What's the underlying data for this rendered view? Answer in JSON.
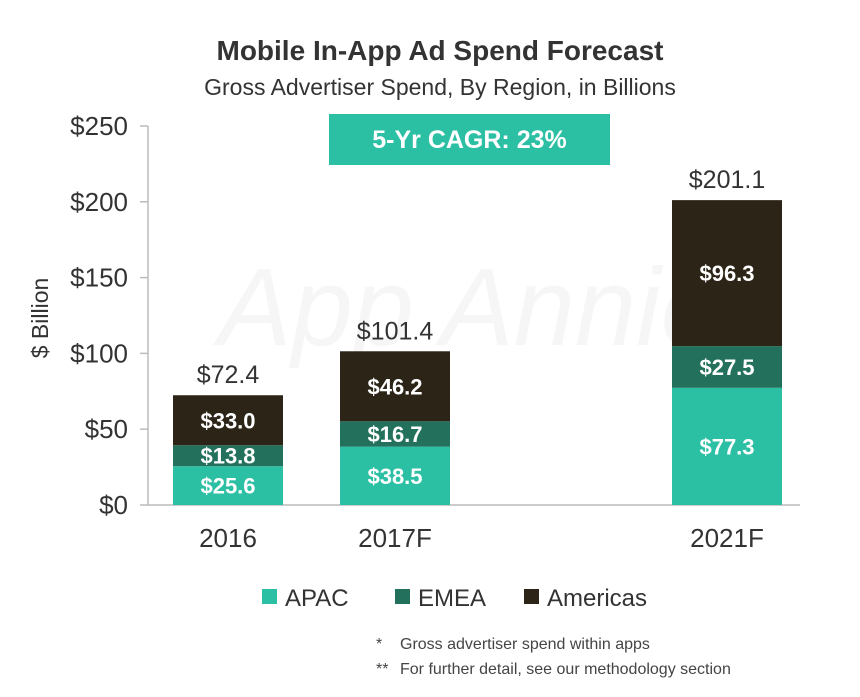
{
  "chart_data": {
    "type": "bar",
    "stacked": true,
    "title": "Mobile In-App Ad Spend Forecast",
    "subtitle": "Gross Advertiser Spend, By Region, in Billions",
    "ylabel": "$ Billion",
    "ylim": [
      0,
      250
    ],
    "y_ticks": [
      0,
      50,
      100,
      150,
      200,
      250
    ],
    "y_tick_labels": [
      "$0",
      "$50",
      "$100",
      "$150",
      "$200",
      "$250"
    ],
    "categories": [
      "2016",
      "2017F",
      "2021F"
    ],
    "series": [
      {
        "name": "APAC",
        "color": "#2bbfa4",
        "values": [
          25.6,
          38.5,
          77.3
        ],
        "labels": [
          "$25.6",
          "$38.5",
          "$77.3"
        ]
      },
      {
        "name": "EMEA",
        "color": "#23705c",
        "values": [
          13.8,
          16.7,
          27.5
        ],
        "labels": [
          "$13.8",
          "$16.7",
          "$27.5"
        ]
      },
      {
        "name": "Americas",
        "color": "#2d2418",
        "values": [
          33.0,
          46.2,
          96.3
        ],
        "labels": [
          "$33.0",
          "$46.2",
          "$96.3"
        ]
      }
    ],
    "totals": [
      72.4,
      101.4,
      201.1
    ],
    "total_labels": [
      "$72.4",
      "$101.4",
      "$201.1"
    ],
    "callout": "5-Yr CAGR: 23%",
    "callout_color": "#2bbfa4",
    "watermark": "App Annie",
    "legend_position": "bottom",
    "grid": false,
    "footnotes": [
      {
        "marker": "*",
        "text": "Gross advertiser spend within apps"
      },
      {
        "marker": "**",
        "text": "For further detail, see our methodology section"
      }
    ],
    "text_color": "#333333"
  }
}
